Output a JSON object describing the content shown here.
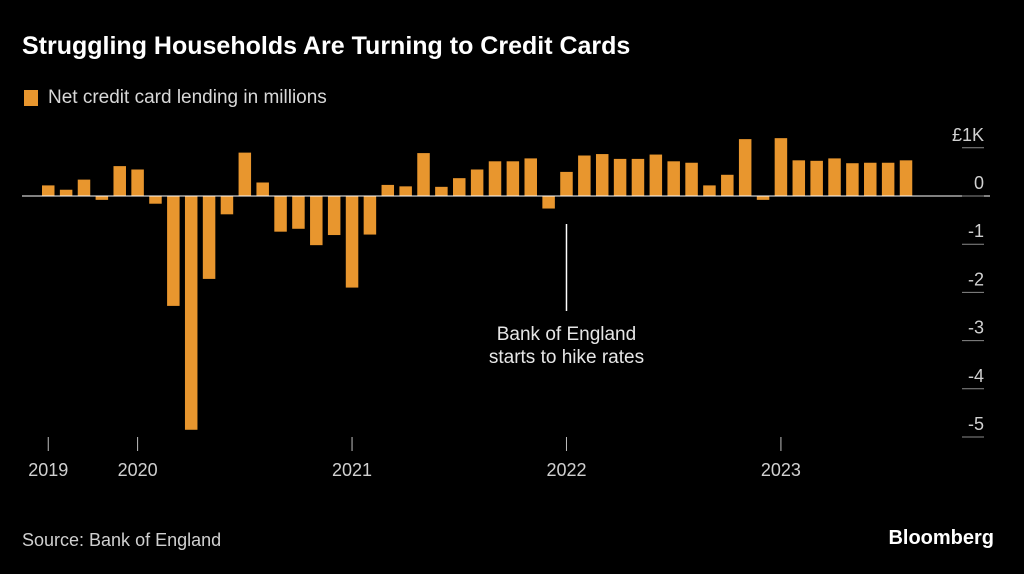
{
  "title": "Struggling Households Are Turning to Credit Cards",
  "legend": {
    "label": "Net credit card lending in millions",
    "color": "#E8962E"
  },
  "source": "Source: Bank of England",
  "brand": "Bloomberg",
  "chart_data": {
    "type": "bar",
    "series": [
      {
        "name": "Net credit card lending in millions",
        "color": "#E8962E",
        "values": [
          0.22,
          0.13,
          0.34,
          -0.08,
          0.62,
          0.55,
          -0.16,
          -2.28,
          -4.85,
          -1.72,
          -0.38,
          0.9,
          0.28,
          -0.74,
          -0.68,
          -1.02,
          -0.81,
          -1.9,
          -0.8,
          0.23,
          0.2,
          0.89,
          0.19,
          0.37,
          0.55,
          0.72,
          0.72,
          0.78,
          -0.26,
          0.5,
          0.84,
          0.87,
          0.77,
          0.77,
          0.86,
          0.72,
          0.69,
          0.22,
          0.44,
          1.18,
          -0.08,
          1.2,
          0.74,
          0.73,
          0.78,
          0.68,
          0.69,
          0.69,
          0.74
        ]
      }
    ],
    "y_unit_label": "£1K",
    "ylim": [
      -5,
      1
    ],
    "yticks": [
      {
        "value": 1,
        "label": "£1K"
      },
      {
        "value": 0,
        "label": "0"
      },
      {
        "value": -1,
        "label": "-1"
      },
      {
        "value": -2,
        "label": "-2"
      },
      {
        "value": -3,
        "label": "-3"
      },
      {
        "value": -4,
        "label": "-4"
      },
      {
        "value": -5,
        "label": "-5"
      }
    ],
    "xticks": [
      {
        "index": 0,
        "label": "2019"
      },
      {
        "index": 5,
        "label": "2020"
      },
      {
        "index": 17,
        "label": "2021"
      },
      {
        "index": 29,
        "label": "2022"
      },
      {
        "index": 41,
        "label": "2023"
      }
    ],
    "annotation": {
      "index": 29,
      "lines": [
        "Bank of England",
        "starts to hike rates"
      ]
    }
  }
}
